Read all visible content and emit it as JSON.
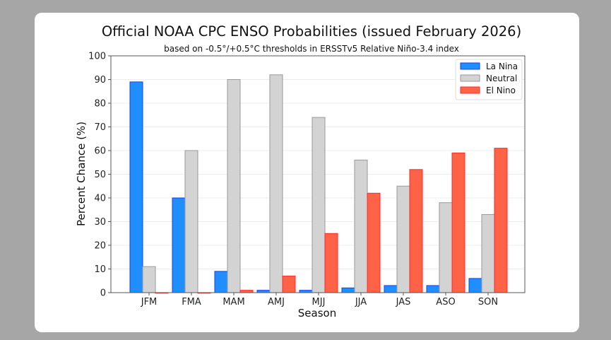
{
  "chart_data": {
    "type": "bar",
    "title": "Official NOAA CPC ENSO Probabilities (issued February 2026)",
    "subtitle": "based on -0.5°/+0.5°C thresholds in ERSSTv5 Relative Niño-3.4 index",
    "xlabel": "Season",
    "ylabel": "Percent Chance (%)",
    "ylim": [
      0,
      100
    ],
    "yticks": [
      0,
      10,
      20,
      30,
      40,
      50,
      60,
      70,
      80,
      90,
      100
    ],
    "grid": true,
    "legend_position": "top-right",
    "categories": [
      "JFM",
      "FMA",
      "MAM",
      "AMJ",
      "MJJ",
      "JJA",
      "JAS",
      "ASO",
      "SON"
    ],
    "series": [
      {
        "name": "La Nina",
        "color": "#1f8fff",
        "edge": "#1a3cff",
        "values": [
          89,
          40,
          9,
          1,
          1,
          2,
          3,
          3,
          6
        ]
      },
      {
        "name": "Neutral",
        "color": "#d3d3d3",
        "edge": "#9a9a9a",
        "values": [
          11,
          60,
          90,
          92,
          74,
          56,
          45,
          38,
          33
        ]
      },
      {
        "name": "El Nino",
        "color": "#ff6347",
        "edge": "#ff2a2a",
        "values": [
          0,
          0,
          1,
          7,
          25,
          42,
          52,
          59,
          61
        ]
      }
    ]
  }
}
